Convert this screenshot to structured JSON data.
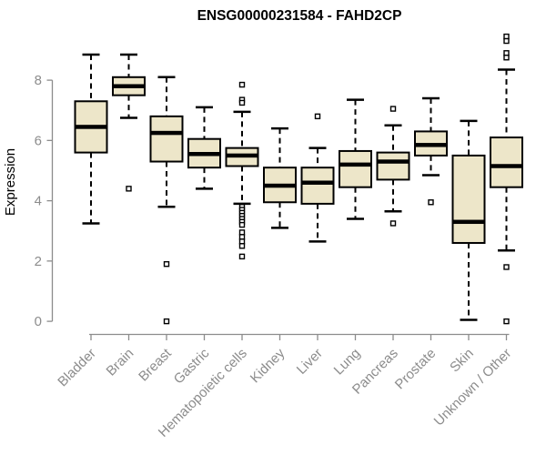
{
  "chart_data": {
    "type": "boxplot",
    "title": "ENSG00000231584 - FAHD2CP",
    "xlabel": "",
    "ylabel": "Expression",
    "ylim": [
      0,
      9.5
    ],
    "yticks": [
      "0",
      "2",
      "4",
      "6",
      "8"
    ],
    "grid": false,
    "legend": "none",
    "categories": [
      "Bladder",
      "Brain",
      "Breast",
      "Gastric",
      "Hematopoietic cells",
      "Kidney",
      "Liver",
      "Lung",
      "Pancreas",
      "Prostate",
      "Skin",
      "Unknown / Other"
    ],
    "boxes": [
      {
        "label": "Bladder",
        "whisker_low": 3.25,
        "q1": 5.6,
        "median": 6.45,
        "q3": 7.3,
        "whisker_high": 8.85,
        "outliers": []
      },
      {
        "label": "Brain",
        "whisker_low": 6.75,
        "q1": 7.5,
        "median": 7.8,
        "q3": 8.1,
        "whisker_high": 8.85,
        "outliers": [
          4.4
        ]
      },
      {
        "label": "Breast",
        "whisker_low": 3.8,
        "q1": 5.3,
        "median": 6.25,
        "q3": 6.8,
        "whisker_high": 8.1,
        "outliers": [
          1.9,
          0.0
        ]
      },
      {
        "label": "Gastric",
        "whisker_low": 4.4,
        "q1": 5.1,
        "median": 5.55,
        "q3": 6.05,
        "whisker_high": 7.1,
        "outliers": []
      },
      {
        "label": "Hematopoietic cells",
        "whisker_low": 3.9,
        "q1": 5.15,
        "median": 5.5,
        "q3": 5.75,
        "whisker_high": 6.95,
        "outliers": [
          7.85,
          7.35,
          7.25,
          3.8,
          3.7,
          3.6,
          3.5,
          3.4,
          3.3,
          3.2,
          2.95,
          2.8,
          2.65,
          2.5,
          2.15
        ]
      },
      {
        "label": "Kidney",
        "whisker_low": 3.1,
        "q1": 3.95,
        "median": 4.5,
        "q3": 5.1,
        "whisker_high": 6.4,
        "outliers": []
      },
      {
        "label": "Liver",
        "whisker_low": 2.65,
        "q1": 3.9,
        "median": 4.6,
        "q3": 5.1,
        "whisker_high": 5.75,
        "outliers": [
          6.8
        ]
      },
      {
        "label": "Lung",
        "whisker_low": 3.4,
        "q1": 4.45,
        "median": 5.2,
        "q3": 5.65,
        "whisker_high": 7.35,
        "outliers": []
      },
      {
        "label": "Pancreas",
        "whisker_low": 3.65,
        "q1": 4.7,
        "median": 5.3,
        "q3": 5.6,
        "whisker_high": 6.5,
        "outliers": [
          7.05,
          3.25
        ]
      },
      {
        "label": "Prostate",
        "whisker_low": 4.85,
        "q1": 5.5,
        "median": 5.85,
        "q3": 6.3,
        "whisker_high": 7.4,
        "outliers": [
          3.95
        ]
      },
      {
        "label": "Skin",
        "whisker_low": 0.05,
        "q1": 2.6,
        "median": 3.3,
        "q3": 5.5,
        "whisker_high": 6.65,
        "outliers": []
      },
      {
        "label": "Unknown / Other",
        "whisker_low": 2.35,
        "q1": 4.45,
        "median": 5.15,
        "q3": 6.1,
        "whisker_high": 8.35,
        "outliers": [
          9.45,
          9.3,
          8.9,
          8.75,
          1.8,
          0.0
        ]
      }
    ],
    "colors": {
      "box_fill": "#ede6c9",
      "box_border": "#000000",
      "median": "#000000",
      "whisker": "#000000",
      "outlier_fill": "#ffffff",
      "axis": "#8c8c8c",
      "tick_label": "#8c8c8c",
      "title": "#000000"
    }
  }
}
